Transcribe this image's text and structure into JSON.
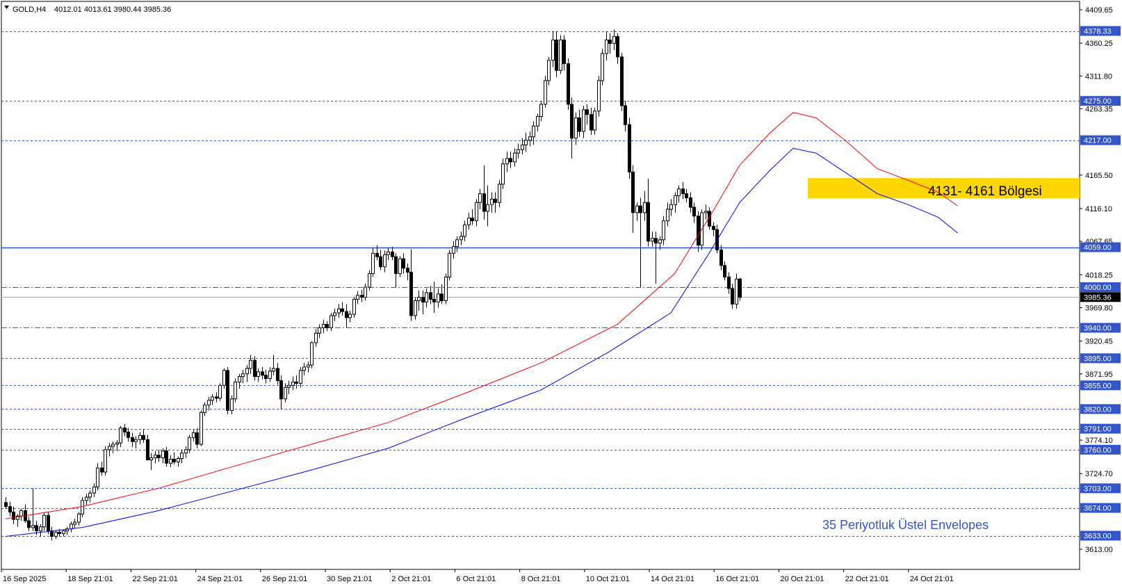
{
  "header": {
    "symbol": "GOLD,H4",
    "ohlc": "4012.01 4013.61 3980.44 3985.36"
  },
  "colors": {
    "background": "#ffffff",
    "axis": "#000000",
    "level_line": "#3355cc",
    "main_level": "#2255dd",
    "price_line": "#b0b0b0",
    "label_bg": "#3355cc",
    "zone": "#ffd700",
    "upper_envelope": "#ff0000",
    "lower_envelope": "#0000ff",
    "candle": "#000000",
    "annotation_text": "#3355cc"
  },
  "chart_data": {
    "type": "candlestick",
    "timeframe": "H4",
    "ylim": [
      3613.0,
      4409.65
    ],
    "y_ticks": [
      "4409.65",
      "4360.25",
      "4311.80",
      "4263.35",
      "4165.50",
      "4116.10",
      "4067.65",
      "4018.25",
      "3969.80",
      "3920.45",
      "3871.95",
      "3774.10",
      "3724.70",
      "3613.00"
    ],
    "x_ticks": [
      "16 Sep 2025",
      "18 Sep 21:01",
      "22 Sep 21:01",
      "24 Sep 21:01",
      "26 Sep 21:01",
      "30 Sep 21:01",
      "2 Oct 21:01",
      "6 Oct 21:01",
      "8 Oct 21:01",
      "10 Oct 21:01",
      "14 Oct 21:01",
      "16 Oct 21:01",
      "20 Oct 21:01",
      "22 Oct 21:01",
      "24 Oct 21:01"
    ],
    "horizontal_levels": [
      {
        "value": 4378.33,
        "label": "4378.33",
        "style": "dashed"
      },
      {
        "value": 4275.0,
        "label": "4275.00",
        "style": "dashed"
      },
      {
        "value": 4217.0,
        "label": "4217.00",
        "style": "dashed"
      },
      {
        "value": 4059.0,
        "label": "4059.00",
        "style": "solid"
      },
      {
        "value": 4000.0,
        "label": "4000.00",
        "style": "dashdot"
      },
      {
        "value": 3940.0,
        "label": "3940.00",
        "style": "dashdot"
      },
      {
        "value": 3895.0,
        "label": "3895.00",
        "style": "dashed"
      },
      {
        "value": 3855.0,
        "label": "3855.00",
        "style": "dashed"
      },
      {
        "value": 3820.0,
        "label": "3820.00",
        "style": "dashed"
      },
      {
        "value": 3791.0,
        "label": "3791.00",
        "style": "dashed"
      },
      {
        "value": 3760.0,
        "label": "3760.00",
        "style": "dashed"
      },
      {
        "value": 3703.0,
        "label": "3703.00",
        "style": "dashed"
      },
      {
        "value": 3674.0,
        "label": "3674.00",
        "style": "dashed"
      },
      {
        "value": 3633.0,
        "label": "3633.00",
        "style": "dashed"
      }
    ],
    "current_price": {
      "value": 3985.36,
      "label": "3985.36"
    },
    "zone": {
      "low": 4131,
      "high": 4161,
      "label": "4131- 4161 Bölgesi"
    },
    "indicator_label": "35 Periyotluk Üstel Envelopes",
    "candles": [
      [
        3682,
        3690,
        3672,
        3676
      ],
      [
        3676,
        3683,
        3662,
        3668
      ],
      [
        3668,
        3676,
        3650,
        3657
      ],
      [
        3657,
        3665,
        3646,
        3662
      ],
      [
        3662,
        3673,
        3655,
        3670
      ],
      [
        3670,
        3679,
        3652,
        3655
      ],
      [
        3655,
        3661,
        3640,
        3645
      ],
      [
        3645,
        3703,
        3640,
        3648
      ],
      [
        3648,
        3655,
        3634,
        3640
      ],
      [
        3640,
        3650,
        3632,
        3646
      ],
      [
        3646,
        3667,
        3640,
        3663
      ],
      [
        3663,
        3668,
        3635,
        3640
      ],
      [
        3640,
        3646,
        3626,
        3632
      ],
      [
        3632,
        3641,
        3628,
        3638
      ],
      [
        3638,
        3643,
        3632,
        3636
      ],
      [
        3636,
        3642,
        3632,
        3640
      ],
      [
        3640,
        3646,
        3634,
        3643
      ],
      [
        3643,
        3654,
        3638,
        3650
      ],
      [
        3650,
        3658,
        3644,
        3653
      ],
      [
        3653,
        3668,
        3648,
        3665
      ],
      [
        3665,
        3690,
        3660,
        3685
      ],
      [
        3685,
        3695,
        3678,
        3690
      ],
      [
        3690,
        3700,
        3682,
        3696
      ],
      [
        3696,
        3710,
        3690,
        3705
      ],
      [
        3705,
        3740,
        3700,
        3733
      ],
      [
        3733,
        3742,
        3722,
        3727
      ],
      [
        3727,
        3765,
        3722,
        3760
      ],
      [
        3760,
        3770,
        3750,
        3765
      ],
      [
        3765,
        3772,
        3755,
        3768
      ],
      [
        3768,
        3774,
        3758,
        3770
      ],
      [
        3770,
        3795,
        3764,
        3792
      ],
      [
        3792,
        3798,
        3780,
        3786
      ],
      [
        3786,
        3792,
        3772,
        3778
      ],
      [
        3778,
        3785,
        3764,
        3772
      ],
      [
        3772,
        3780,
        3762,
        3775
      ],
      [
        3775,
        3786,
        3768,
        3781
      ],
      [
        3781,
        3790,
        3770,
        3775
      ],
      [
        3775,
        3782,
        3750,
        3745
      ],
      [
        3745,
        3755,
        3730,
        3748
      ],
      [
        3748,
        3758,
        3740,
        3752
      ],
      [
        3752,
        3760,
        3742,
        3748
      ],
      [
        3748,
        3762,
        3740,
        3758
      ],
      [
        3758,
        3764,
        3735,
        3740
      ],
      [
        3740,
        3752,
        3734,
        3746
      ],
      [
        3746,
        3756,
        3738,
        3742
      ],
      [
        3742,
        3750,
        3735,
        3747
      ],
      [
        3747,
        3760,
        3740,
        3755
      ],
      [
        3755,
        3765,
        3748,
        3760
      ],
      [
        3760,
        3782,
        3755,
        3778
      ],
      [
        3778,
        3790,
        3772,
        3785
      ],
      [
        3785,
        3792,
        3762,
        3768
      ],
      [
        3768,
        3818,
        3765,
        3815
      ],
      [
        3815,
        3830,
        3810,
        3826
      ],
      [
        3826,
        3838,
        3818,
        3833
      ],
      [
        3833,
        3842,
        3826,
        3838
      ],
      [
        3838,
        3845,
        3830,
        3836
      ],
      [
        3836,
        3858,
        3832,
        3855
      ],
      [
        3855,
        3880,
        3850,
        3877
      ],
      [
        3877,
        3882,
        3812,
        3818
      ],
      [
        3818,
        3840,
        3812,
        3835
      ],
      [
        3835,
        3865,
        3830,
        3860
      ],
      [
        3860,
        3872,
        3850,
        3868
      ],
      [
        3868,
        3878,
        3858,
        3872
      ],
      [
        3872,
        3885,
        3860,
        3880
      ],
      [
        3880,
        3900,
        3872,
        3892
      ],
      [
        3892,
        3898,
        3862,
        3868
      ],
      [
        3868,
        3880,
        3860,
        3875
      ],
      [
        3875,
        3882,
        3864,
        3870
      ],
      [
        3870,
        3878,
        3858,
        3865
      ],
      [
        3865,
        3882,
        3860,
        3876
      ],
      [
        3876,
        3900,
        3870,
        3880
      ],
      [
        3880,
        3888,
        3856,
        3862
      ],
      [
        3862,
        3870,
        3820,
        3835
      ],
      [
        3835,
        3858,
        3830,
        3852
      ],
      [
        3852,
        3862,
        3842,
        3855
      ],
      [
        3855,
        3868,
        3848,
        3860
      ],
      [
        3860,
        3870,
        3850,
        3858
      ],
      [
        3858,
        3882,
        3852,
        3877
      ],
      [
        3877,
        3888,
        3870,
        3882
      ],
      [
        3882,
        3890,
        3874,
        3885
      ],
      [
        3885,
        3920,
        3880,
        3918
      ],
      [
        3918,
        3938,
        3912,
        3932
      ],
      [
        3932,
        3945,
        3925,
        3940
      ],
      [
        3940,
        3952,
        3932,
        3945
      ],
      [
        3945,
        3950,
        3935,
        3940
      ],
      [
        3940,
        3962,
        3935,
        3958
      ],
      [
        3958,
        3968,
        3950,
        3962
      ],
      [
        3962,
        3975,
        3955,
        3968
      ],
      [
        3968,
        3978,
        3958,
        3964
      ],
      [
        3964,
        3975,
        3940,
        3955
      ],
      [
        3955,
        3965,
        3948,
        3960
      ],
      [
        3960,
        3985,
        3955,
        3982
      ],
      [
        3982,
        3994,
        3975,
        3988
      ],
      [
        3988,
        3996,
        3978,
        3985
      ],
      [
        3985,
        4005,
        3980,
        4000
      ],
      [
        4000,
        4025,
        3995,
        4020
      ],
      [
        4020,
        4058,
        4015,
        4050
      ],
      [
        4050,
        4062,
        4040,
        4045
      ],
      [
        4045,
        4055,
        4025,
        4030
      ],
      [
        4030,
        4054,
        4022,
        4048
      ],
      [
        4048,
        4058,
        4040,
        4052
      ],
      [
        4052,
        4060,
        4040,
        4045
      ],
      [
        4045,
        4050,
        4000,
        4020
      ],
      [
        4020,
        4046,
        4015,
        4042
      ],
      [
        4042,
        4050,
        4020,
        4028
      ],
      [
        4028,
        4035,
        4010,
        4022
      ],
      [
        4022,
        4056,
        3950,
        3958
      ],
      [
        3958,
        3985,
        3952,
        3980
      ],
      [
        3980,
        3995,
        3965,
        3985
      ],
      [
        3985,
        3995,
        3960,
        3978
      ],
      [
        3978,
        3998,
        3970,
        3992
      ],
      [
        3992,
        4002,
        3975,
        3982
      ],
      [
        3982,
        4008,
        3962,
        3978
      ],
      [
        3978,
        3998,
        3970,
        3990
      ],
      [
        3990,
        4004,
        3975,
        3980
      ],
      [
        3980,
        4020,
        3975,
        4015
      ],
      [
        4015,
        4055,
        4010,
        4050
      ],
      [
        4050,
        4068,
        4042,
        4060
      ],
      [
        4060,
        4075,
        4052,
        4070
      ],
      [
        4070,
        4082,
        4062,
        4075
      ],
      [
        4075,
        4098,
        4068,
        4092
      ],
      [
        4092,
        4110,
        4085,
        4102
      ],
      [
        4102,
        4115,
        4092,
        4098
      ],
      [
        4098,
        4130,
        4090,
        4125
      ],
      [
        4125,
        4145,
        4115,
        4138
      ],
      [
        4138,
        4180,
        4100,
        4112
      ],
      [
        4112,
        4150,
        4090,
        4122
      ],
      [
        4122,
        4140,
        4110,
        4130
      ],
      [
        4130,
        4140,
        4110,
        4125
      ],
      [
        4125,
        4158,
        4118,
        4152
      ],
      [
        4152,
        4190,
        4145,
        4182
      ],
      [
        4182,
        4200,
        4170,
        4190
      ],
      [
        4190,
        4200,
        4176,
        4185
      ],
      [
        4185,
        4205,
        4178,
        4198
      ],
      [
        4198,
        4212,
        4190,
        4203
      ],
      [
        4203,
        4220,
        4196,
        4210
      ],
      [
        4210,
        4228,
        4200,
        4217
      ],
      [
        4217,
        4230,
        4208,
        4222
      ],
      [
        4222,
        4245,
        4210,
        4238
      ],
      [
        4238,
        4256,
        4230,
        4252
      ],
      [
        4252,
        4275,
        4245,
        4270
      ],
      [
        4270,
        4312,
        4265,
        4305
      ],
      [
        4305,
        4340,
        4298,
        4335
      ],
      [
        4335,
        4378,
        4325,
        4365
      ],
      [
        4365,
        4378,
        4310,
        4320
      ],
      [
        4320,
        4372,
        4315,
        4365
      ],
      [
        4365,
        4372,
        4320,
        4330
      ],
      [
        4330,
        4338,
        4262,
        4270
      ],
      [
        4270,
        4280,
        4190,
        4220
      ],
      [
        4220,
        4258,
        4210,
        4250
      ],
      [
        4250,
        4262,
        4222,
        4230
      ],
      [
        4230,
        4268,
        4220,
        4262
      ],
      [
        4262,
        4270,
        4240,
        4255
      ],
      [
        4255,
        4265,
        4225,
        4232
      ],
      [
        4232,
        4265,
        4225,
        4260
      ],
      [
        4260,
        4312,
        4252,
        4305
      ],
      [
        4305,
        4352,
        4298,
        4345
      ],
      [
        4345,
        4378,
        4335,
        4365
      ],
      [
        4365,
        4375,
        4345,
        4360
      ],
      [
        4360,
        4380,
        4350,
        4370
      ],
      [
        4370,
        4375,
        4330,
        4340
      ],
      [
        4340,
        4346,
        4260,
        4268
      ],
      [
        4268,
        4275,
        4230,
        4240
      ],
      [
        4240,
        4250,
        4160,
        4170
      ],
      [
        4170,
        4180,
        4080,
        4110
      ],
      [
        4110,
        4125,
        4098,
        4120
      ],
      [
        4120,
        4132,
        4000,
        4110
      ],
      [
        4110,
        4142,
        4098,
        4125
      ],
      [
        4125,
        4160,
        4060,
        4068
      ],
      [
        4068,
        4082,
        4060,
        4072
      ],
      [
        4072,
        4082,
        4005,
        4065
      ],
      [
        4065,
        4075,
        4055,
        4070
      ],
      [
        4070,
        4105,
        4062,
        4098
      ],
      [
        4098,
        4125,
        4090,
        4115
      ],
      [
        4115,
        4130,
        4105,
        4122
      ],
      [
        4122,
        4140,
        4110,
        4135
      ],
      [
        4135,
        4150,
        4125,
        4145
      ],
      [
        4145,
        4155,
        4130,
        4138
      ],
      [
        4138,
        4145,
        4125,
        4132
      ],
      [
        4132,
        4140,
        4110,
        4118
      ],
      [
        4118,
        4125,
        4095,
        4105
      ],
      [
        4105,
        4112,
        4052,
        4062
      ],
      [
        4062,
        4115,
        4055,
        4110
      ],
      [
        4110,
        4122,
        4100,
        4112
      ],
      [
        4112,
        4118,
        4085,
        4090
      ],
      [
        4090,
        4096,
        4075,
        4085
      ],
      [
        4085,
        4092,
        4050,
        4055
      ],
      [
        4055,
        4062,
        4025,
        4032
      ],
      [
        4032,
        4038,
        4010,
        4015
      ],
      [
        4015,
        4022,
        3990,
        3998
      ],
      [
        3998,
        4005,
        3968,
        3975
      ],
      [
        3975,
        4020,
        3968,
        4012
      ],
      [
        4012,
        4014,
        3980,
        3985
      ]
    ],
    "envelope_upper": [
      [
        0,
        3658
      ],
      [
        20,
        3676
      ],
      [
        40,
        3703
      ],
      [
        60,
        3736
      ],
      [
        80,
        3768
      ],
      [
        100,
        3800
      ],
      [
        120,
        3843
      ],
      [
        140,
        3888
      ],
      [
        160,
        3945
      ],
      [
        175,
        4020
      ],
      [
        185,
        4112
      ],
      [
        192,
        4180
      ],
      [
        200,
        4228
      ],
      [
        206,
        4258
      ],
      [
        212,
        4250
      ],
      [
        220,
        4215
      ],
      [
        228,
        4175
      ],
      [
        236,
        4158
      ],
      [
        244,
        4140
      ],
      [
        249,
        4120
      ]
    ],
    "envelope_lower": [
      [
        0,
        3632
      ],
      [
        20,
        3645
      ],
      [
        40,
        3670
      ],
      [
        60,
        3700
      ],
      [
        80,
        3730
      ],
      [
        100,
        3762
      ],
      [
        120,
        3806
      ],
      [
        140,
        3848
      ],
      [
        158,
        3905
      ],
      [
        174,
        3962
      ],
      [
        184,
        4050
      ],
      [
        192,
        4125
      ],
      [
        200,
        4173
      ],
      [
        206,
        4205
      ],
      [
        212,
        4198
      ],
      [
        220,
        4168
      ],
      [
        228,
        4138
      ],
      [
        236,
        4122
      ],
      [
        244,
        4103
      ],
      [
        249,
        4080
      ]
    ]
  }
}
